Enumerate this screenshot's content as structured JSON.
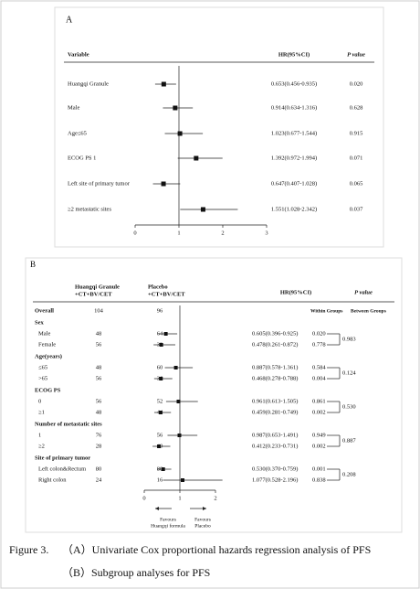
{
  "chart_data": [
    {
      "type": "forest",
      "panel": "A",
      "columns": {
        "variable": "Variable",
        "hr": "HR(95%CI)",
        "p": "P value"
      },
      "rows": [
        {
          "label": "Huangqi Granule",
          "hr": 0.653,
          "lo": 0.456,
          "hi": 0.935,
          "hr_label": "0.653(0.456-0.935)",
          "p": "0.020"
        },
        {
          "label": "Male",
          "hr": 0.914,
          "lo": 0.634,
          "hi": 1.316,
          "hr_label": "0.914(0.634-1.316)",
          "p": "0.628"
        },
        {
          "label": "Age≤65",
          "hr": 1.023,
          "lo": 0.677,
          "hi": 1.544,
          "hr_label": "1.023(0.677-1.544)",
          "p": "0.915"
        },
        {
          "label": "ECOG PS 1",
          "hr": 1.392,
          "lo": 0.972,
          "hi": 1.994,
          "hr_label": "1.392(0.972-1.994)",
          "p": "0.071"
        },
        {
          "label": "Left site of primary tumor",
          "hr": 0.647,
          "lo": 0.407,
          "hi": 1.028,
          "hr_label": "0.647(0.407-1.028)",
          "p": "0.065"
        },
        {
          "label": "≥2 metastatic sites",
          "hr": 1.551,
          "lo": 1.028,
          "hi": 2.342,
          "hr_label": "1.551(1.028-2.342)",
          "p": "0.037"
        }
      ],
      "xlim": [
        0,
        3
      ],
      "xticks": [
        0,
        1,
        2,
        3
      ],
      "ref_line": 1
    },
    {
      "type": "forest",
      "panel": "B",
      "columns": {
        "arm1": [
          "Huangqi Granule",
          "+CT+BV/CET"
        ],
        "arm2": [
          "Placebo",
          "+CT+BV/CET"
        ],
        "hr": "HR(95%CI)",
        "p": "P value",
        "subheaders": [
          "Within Groups",
          "Between Groups"
        ]
      },
      "overall": {
        "label": "Overall",
        "n1": 104,
        "n2": 96
      },
      "groups": [
        {
          "label": "Sex",
          "between_p": "0.983",
          "rows": [
            {
              "label": "Male",
              "n1": 48,
              "n2": 64,
              "hr": 0.605,
              "lo": 0.396,
              "hi": 0.925,
              "hr_label": "0.605(0.396-0.925)",
              "p": "0.020"
            },
            {
              "label": "Female",
              "n1": 56,
              "n2": 32,
              "hr": 0.478,
              "lo": 0.261,
              "hi": 0.872,
              "hr_label": "0.478(0.261-0.872)",
              "p": "0.778"
            }
          ]
        },
        {
          "label": "Age(years)",
          "between_p": "0.124",
          "rows": [
            {
              "label": "≤65",
              "n1": 48,
              "n2": 60,
              "hr": 0.887,
              "lo": 0.578,
              "hi": 1.361,
              "hr_label": "0.887(0.578-1.361)",
              "p": "0.584"
            },
            {
              "label": ">65",
              "n1": 56,
              "n2": 36,
              "hr": 0.468,
              "lo": 0.278,
              "hi": 0.788,
              "hr_label": "0.468(0.278-0.788)",
              "p": "0.004"
            }
          ]
        },
        {
          "label": "ECOG PS",
          "between_p": "0.530",
          "rows": [
            {
              "label": "0",
              "n1": 56,
              "n2": 52,
              "hr": 0.961,
              "lo": 0.613,
              "hi": 1.505,
              "hr_label": "0.961(0.613-1.505)",
              "p": "0.861"
            },
            {
              "label": "≥1",
              "n1": 48,
              "n2": 44,
              "hr": 0.459,
              "lo": 0.281,
              "hi": 0.749,
              "hr_label": "0.459(0.281-0.749)",
              "p": "0.002"
            }
          ]
        },
        {
          "label": "Number of metastatic sites",
          "between_p": "0.887",
          "rows": [
            {
              "label": "1",
              "n1": 76,
              "n2": 56,
              "hr": 0.987,
              "lo": 0.653,
              "hi": 1.491,
              "hr_label": "0.987(0.653-1.491)",
              "p": "0.949"
            },
            {
              "label": "≥2",
              "n1": 28,
              "n2": 40,
              "hr": 0.412,
              "lo": 0.233,
              "hi": 0.731,
              "hr_label": "0.412(0.233-0.731)",
              "p": "0.002"
            }
          ]
        },
        {
          "label": "Site of primary tumor",
          "between_p": "0.208",
          "rows": [
            {
              "label": "Left colon&Rectum",
              "n1": 80,
              "n2": 80,
              "hr": 0.53,
              "lo": 0.37,
              "hi": 0.759,
              "hr_label": "0.530(0.370-0.759)",
              "p": "0.001"
            },
            {
              "label": "Right colon",
              "n1": 24,
              "n2": 16,
              "hr": 1.077,
              "lo": 0.528,
              "hi": 2.196,
              "hr_label": "1.077(0.528-2.196)",
              "p": "0.838"
            }
          ]
        }
      ],
      "xlim": [
        0,
        2
      ],
      "xticks": [
        0,
        1,
        2
      ],
      "ref_line": 1,
      "favours": [
        [
          "Favours",
          "Huangqi formula"
        ],
        [
          "Favours",
          "Placebo"
        ]
      ]
    }
  ],
  "caption": [
    "Figure 3.",
    "（A）Univariate Cox proportional hazards regression analysis of PFS",
    "（B）Subgroup analyses for PFS"
  ]
}
